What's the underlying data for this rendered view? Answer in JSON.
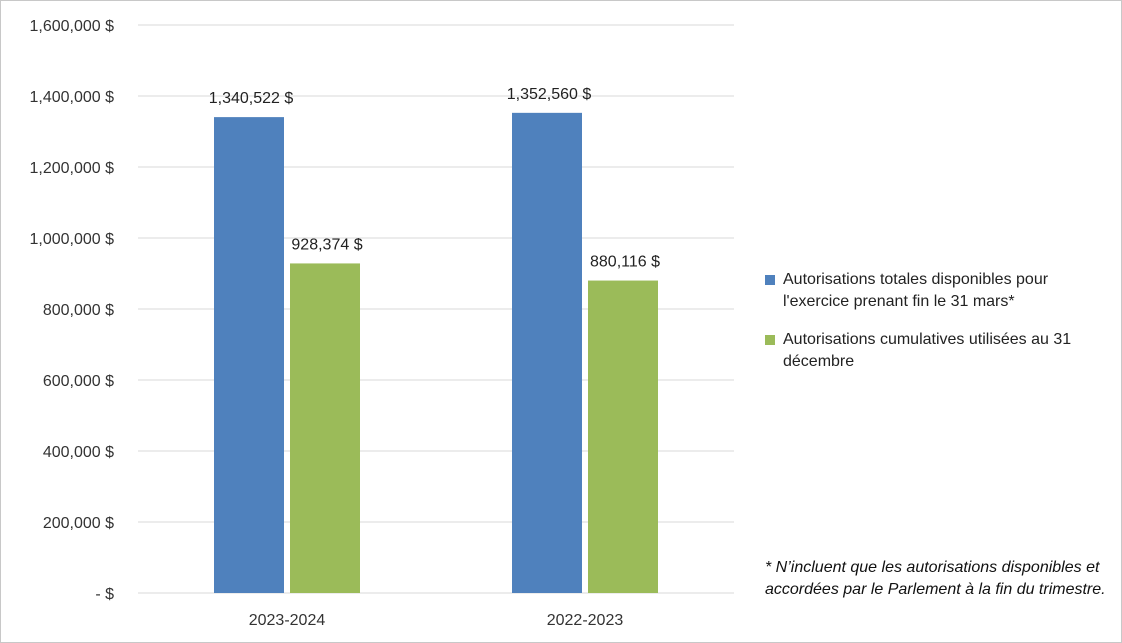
{
  "chart_data": {
    "type": "bar",
    "categories": [
      "2023-2024",
      "2022-2023"
    ],
    "series": [
      {
        "name": "Autorisations totales disponibles pour l'exercice prenant fin le 31 mars*",
        "values": [
          1340522,
          1352560
        ],
        "labels": [
          "1,340,522 $",
          "1,352,560 $"
        ],
        "color": "#4f81bd"
      },
      {
        "name": "Autorisations cumulatives utilisées au 31 décembre",
        "values": [
          928374,
          880116
        ],
        "labels": [
          "928,374 $",
          "880,116 $"
        ],
        "color": "#9bbb59"
      }
    ],
    "ylim": [
      0,
      1600000
    ],
    "ytick_values": [
      0,
      200000,
      400000,
      600000,
      800000,
      1000000,
      1200000,
      1400000,
      1600000
    ],
    "ytick_labels": [
      "- $",
      "200,000 $",
      "400,000 $",
      "600,000 $",
      "800,000 $",
      "1,000,000 $",
      "1,200,000 $",
      "1,400,000 $",
      "1,600,000 $"
    ],
    "grid": true,
    "legend_position": "right",
    "gridline_color": "#d9d9d9"
  },
  "footnote": "* N’incluent que les autorisations disponibles et accordées par le Parlement à la fin du trimestre."
}
